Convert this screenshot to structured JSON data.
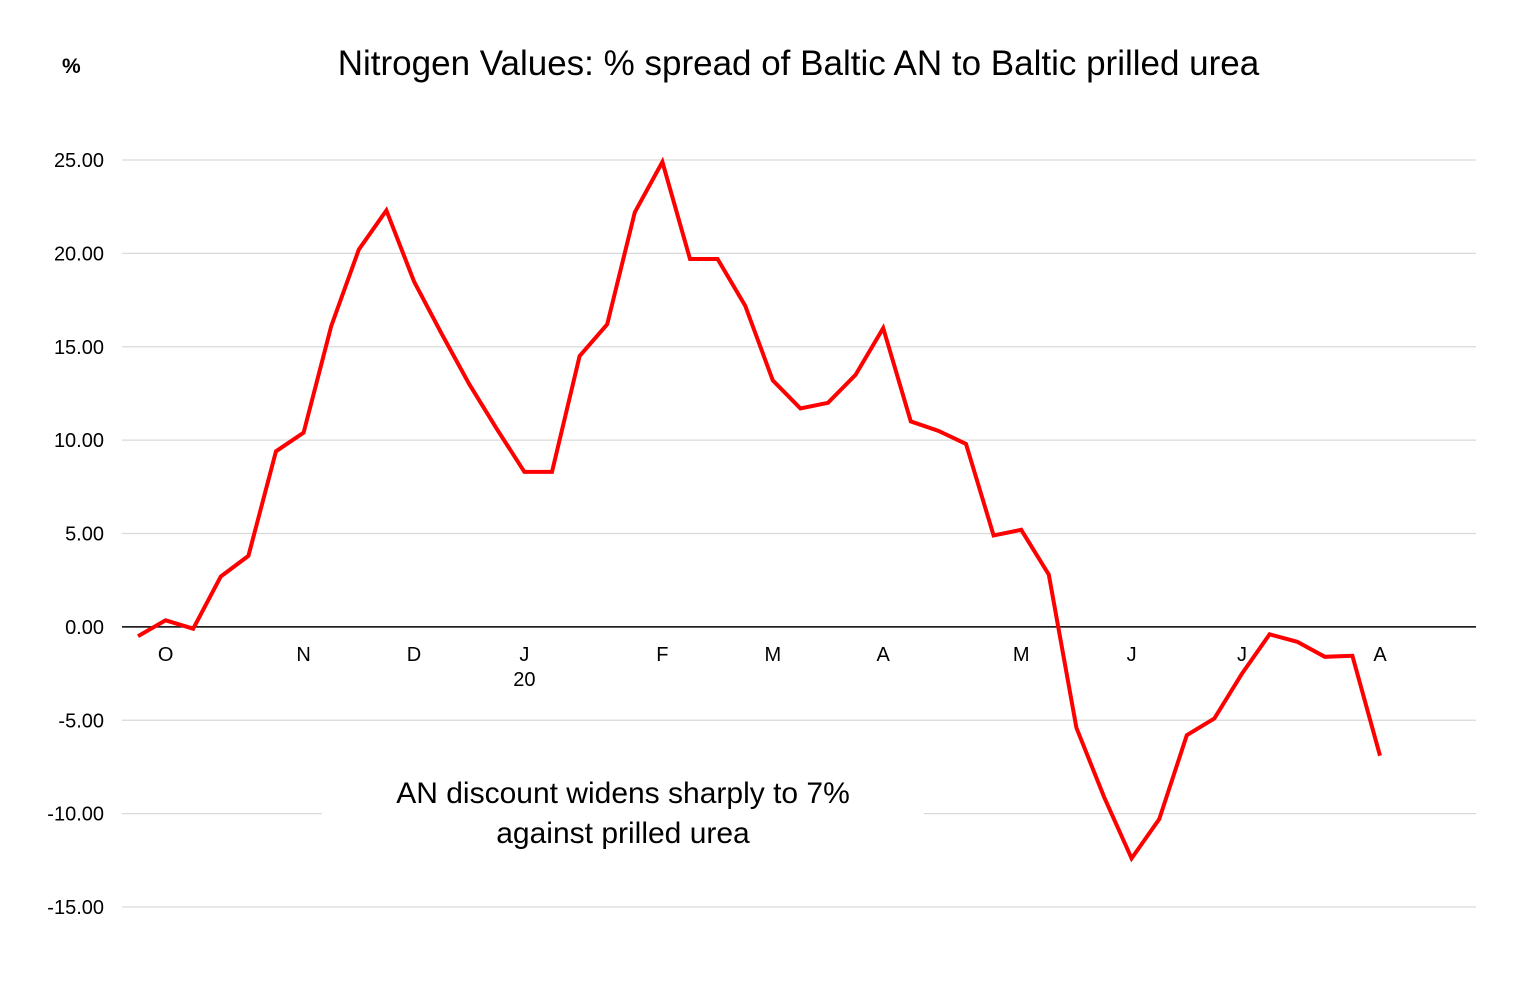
{
  "chart_data": {
    "type": "line",
    "title": "Nitrogen Values: % spread of Baltic AN to Baltic prilled urea",
    "ylabel": "%",
    "ylim": [
      -15,
      25
    ],
    "yticks": [
      25,
      20,
      15,
      10,
      5,
      0,
      -5,
      -10,
      -15
    ],
    "ytick_labels": [
      "25.00",
      "20.00",
      "15.00",
      "10.00",
      "5.00",
      "0.00",
      "-5.00",
      "-10.00",
      "-15.00"
    ],
    "grid": true,
    "x_labels": [
      {
        "text": "O",
        "index": 1
      },
      {
        "text": "N",
        "index": 6
      },
      {
        "text": "D",
        "index": 10
      },
      {
        "text": "J",
        "sub": "20",
        "index": 14
      },
      {
        "text": "F",
        "index": 19
      },
      {
        "text": "M",
        "index": 23
      },
      {
        "text": "A",
        "index": 27
      },
      {
        "text": "M",
        "index": 32
      },
      {
        "text": "J",
        "index": 36
      },
      {
        "text": "J",
        "index": 40
      },
      {
        "text": "A",
        "index": 45
      }
    ],
    "series": [
      {
        "color": "#ff0000",
        "values": [
          -0.5,
          0.35,
          -0.1,
          2.7,
          3.8,
          9.4,
          10.4,
          16.1,
          20.2,
          22.3,
          18.5,
          15.7,
          13.0,
          10.6,
          8.3,
          8.3,
          14.5,
          16.2,
          22.2,
          24.9,
          19.7,
          19.7,
          17.2,
          13.2,
          11.7,
          12.0,
          13.5,
          16.0,
          11.0,
          10.5,
          9.8,
          4.9,
          5.2,
          2.8,
          -5.4,
          -9.1,
          -12.4,
          -10.3,
          -5.8,
          -4.9,
          -2.5,
          -0.4,
          -0.8,
          -1.6,
          -1.55,
          -6.9
        ]
      }
    ],
    "annotations": [
      {
        "lines": [
          "AN discount widens sharply to 7%",
          "against prilled urea"
        ]
      }
    ]
  }
}
